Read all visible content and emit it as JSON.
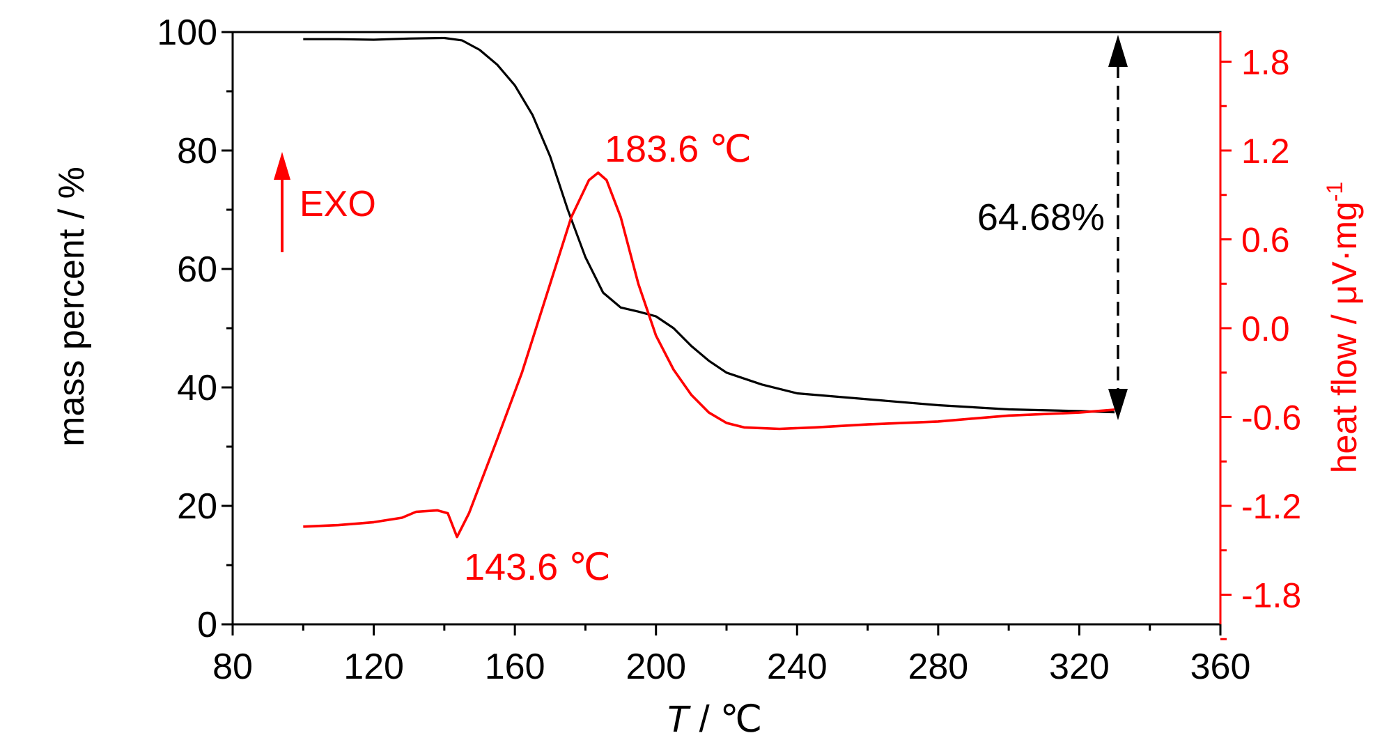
{
  "chart_data": {
    "type": "line",
    "xlabel": {
      "italic": "T",
      "rest": " /  ℃"
    },
    "ylabel_left": "mass percent / %",
    "ylabel_right": {
      "main": "heat flow / μV·mg",
      "sup": "-1"
    },
    "xlim": [
      80,
      360
    ],
    "ylim_left": [
      0,
      100
    ],
    "ylim_right": [
      -2.0,
      2.0
    ],
    "x_ticks": [
      80,
      120,
      160,
      200,
      240,
      280,
      320,
      360
    ],
    "y_ticks_left": [
      0,
      20,
      40,
      60,
      80,
      100
    ],
    "y_ticks_right": [
      "1.8",
      "1.2",
      "0.6",
      "0.0",
      "-0.6",
      "-1.2",
      "-1.8"
    ],
    "colors": {
      "mass": "#000000",
      "heat": "#ff0000"
    },
    "series": [
      {
        "axis": "left",
        "color": "#000000",
        "points": [
          [
            100,
            98.8
          ],
          [
            110,
            98.8
          ],
          [
            120,
            98.7
          ],
          [
            130,
            98.9
          ],
          [
            140,
            99.0
          ],
          [
            145,
            98.6
          ],
          [
            150,
            97.0
          ],
          [
            155,
            94.5
          ],
          [
            160,
            91.0
          ],
          [
            165,
            86.0
          ],
          [
            170,
            79.0
          ],
          [
            175,
            70.0
          ],
          [
            180,
            62.0
          ],
          [
            185,
            56.0
          ],
          [
            190,
            53.5
          ],
          [
            195,
            52.8
          ],
          [
            200,
            52.0
          ],
          [
            205,
            50.0
          ],
          [
            210,
            47.0
          ],
          [
            215,
            44.5
          ],
          [
            220,
            42.5
          ],
          [
            230,
            40.5
          ],
          [
            240,
            39.0
          ],
          [
            260,
            38.0
          ],
          [
            280,
            37.0
          ],
          [
            300,
            36.3
          ],
          [
            320,
            36.0
          ],
          [
            330,
            35.8
          ]
        ]
      },
      {
        "axis": "right",
        "color": "#ff0000",
        "points": [
          [
            100,
            -1.34
          ],
          [
            110,
            -1.33
          ],
          [
            120,
            -1.31
          ],
          [
            128,
            -1.28
          ],
          [
            132,
            -1.24
          ],
          [
            138,
            -1.23
          ],
          [
            141,
            -1.25
          ],
          [
            143.6,
            -1.41
          ],
          [
            147,
            -1.25
          ],
          [
            155,
            -0.75
          ],
          [
            162,
            -0.3
          ],
          [
            170,
            0.3
          ],
          [
            176,
            0.75
          ],
          [
            181,
            1.0
          ],
          [
            183.6,
            1.05
          ],
          [
            186,
            1.0
          ],
          [
            190,
            0.75
          ],
          [
            195,
            0.3
          ],
          [
            200,
            -0.05
          ],
          [
            205,
            -0.28
          ],
          [
            210,
            -0.45
          ],
          [
            215,
            -0.57
          ],
          [
            220,
            -0.64
          ],
          [
            225,
            -0.67
          ],
          [
            235,
            -0.68
          ],
          [
            245,
            -0.67
          ],
          [
            260,
            -0.65
          ],
          [
            280,
            -0.63
          ],
          [
            300,
            -0.59
          ],
          [
            320,
            -0.57
          ],
          [
            330,
            -0.55
          ]
        ]
      }
    ],
    "annotations": {
      "peak_label": "183.6 ℃",
      "dip_label": "143.6 ℃",
      "exo_label": "EXO",
      "mass_loss_label": "64.68%"
    }
  }
}
